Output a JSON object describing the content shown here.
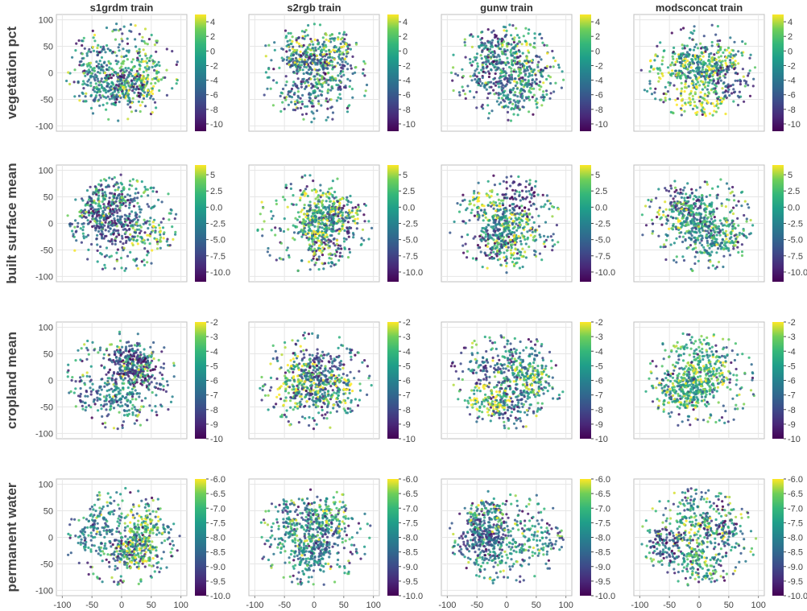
{
  "chart_data": {
    "type": "scatter",
    "columns": [
      "s1grdm train",
      "s2rgb train",
      "gunw train",
      "modsconcat train"
    ],
    "rows": [
      {
        "label": "vegetation pct",
        "colorbar_ticks": [
          "4",
          "2",
          "0",
          "-2",
          "-4",
          "-6",
          "-8",
          "-10"
        ],
        "color_range": [
          -11,
          5
        ]
      },
      {
        "label": "built surface mean",
        "colorbar_ticks": [
          "5",
          "2.5",
          "0.0",
          "-2.5",
          "-5.0",
          "-7.5",
          "-10.0"
        ],
        "color_range": [
          -11.5,
          6.5
        ]
      },
      {
        "label": "cropland mean",
        "colorbar_ticks": [
          "-2",
          "-3",
          "-4",
          "-5",
          "-6",
          "-7",
          "-8",
          "-9",
          "-10"
        ],
        "color_range": [
          -10,
          -2
        ]
      },
      {
        "label": "permanent water",
        "colorbar_ticks": [
          "-6.0",
          "-6.5",
          "-7.0",
          "-7.5",
          "-8.0",
          "-8.5",
          "-9.0",
          "-9.5",
          "-10.0"
        ],
        "color_range": [
          -10,
          -6
        ]
      }
    ],
    "x_ticks": [
      "-100",
      "-50",
      "0",
      "50",
      "100"
    ],
    "y_ticks": [
      "100",
      "50",
      "0",
      "-50",
      "-100"
    ],
    "xlim": [
      -110,
      110
    ],
    "ylim": [
      -110,
      110
    ],
    "grid": true,
    "colormap": "viridis"
  }
}
